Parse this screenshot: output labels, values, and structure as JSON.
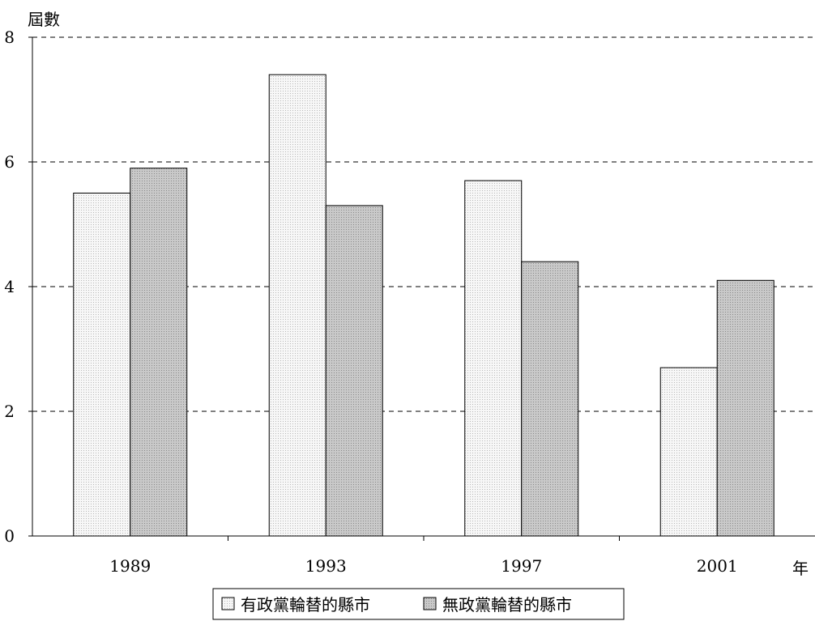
{
  "chart_data": {
    "type": "bar",
    "ylabel": "屆數",
    "xlabel": "年",
    "categories": [
      "1989",
      "1993",
      "1997",
      "2001"
    ],
    "ylim": [
      0,
      8
    ],
    "yticks": [
      0,
      2,
      4,
      6,
      8
    ],
    "grid": "dashed horizontal",
    "legend_position": "bottom",
    "series": [
      {
        "name": "有政黨輪替的縣市",
        "values": [
          5.5,
          7.4,
          5.7,
          2.7
        ],
        "color": "#ebebeb"
      },
      {
        "name": "無政黨輪替的縣市",
        "values": [
          5.9,
          5.3,
          4.4,
          4.1
        ],
        "color": "#b5b5b5"
      }
    ]
  }
}
